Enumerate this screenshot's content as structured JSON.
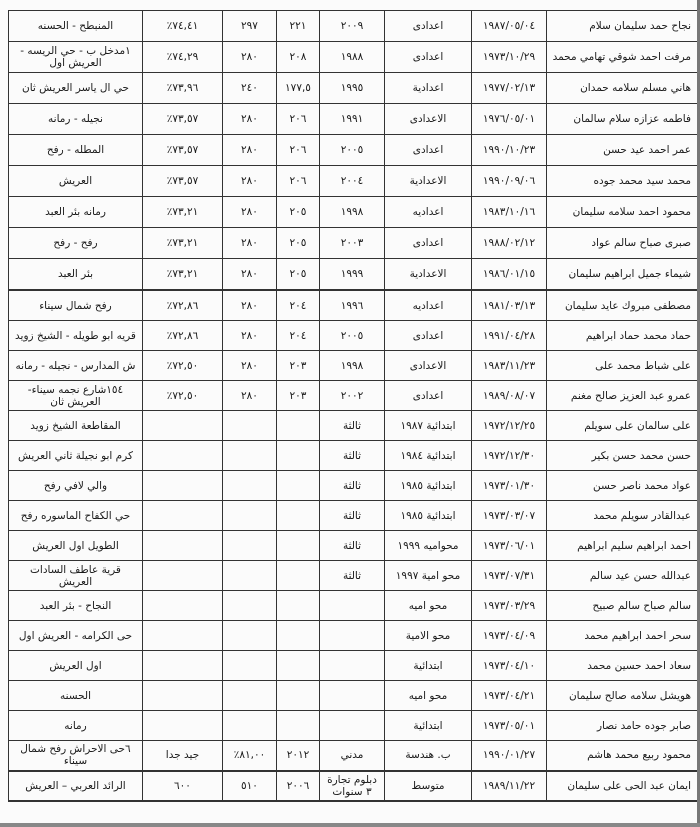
{
  "rows": [
    [
      "نجاح حمد سليمان سلام",
      "١٩٨٧/٠٥/٠٤",
      "اعدادى",
      "٢٠٠٩",
      "٢٢١",
      "٢٩٧",
      "٧٤,٤١٪",
      "المنبطح - الحسنه"
    ],
    [
      "مرفت احمد شوقي تهامي محمد",
      "١٩٧٣/١٠/٢٩",
      "اعدادى",
      "١٩٨٨",
      "٢٠٨",
      "٢٨٠",
      "٧٤,٢٩٪",
      "١مدخل ب - حي الريسه - العريش اول"
    ],
    [
      "هاني مسلم سلامه حمدان",
      "١٩٧٧/٠٢/١٣",
      "اعدادية",
      "١٩٩٥",
      "١٧٧,٥",
      "٢٤٠",
      "٧٣,٩٦٪",
      "حي ال ياسر العريش ثان"
    ],
    [
      "فاطمه عزازه سلام سالمان",
      "١٩٧٦/٠٥/٠١",
      "الاعدادى",
      "١٩٩١",
      "٢٠٦",
      "٢٨٠",
      "٧٣,٥٧٪",
      "نجيله - رمانه"
    ],
    [
      "عمر احمد عيد حسن",
      "١٩٩٠/١٠/٢٣",
      "اعدادى",
      "٢٠٠٥",
      "٢٠٦",
      "٢٨٠",
      "٧٣,٥٧٪",
      "المطله - رفح"
    ],
    [
      "محمد سيد محمد جوده",
      "١٩٩٠/٠٩/٠٦",
      "الاعدادية",
      "٢٠٠٤",
      "٢٠٦",
      "٢٨٠",
      "٧٣,٥٧٪",
      "العريش"
    ],
    [
      "محمود احمد سلامه سليمان",
      "١٩٨٣/١٠/١٦",
      "اعداديه",
      "١٩٩٨",
      "٢٠٥",
      "٢٨٠",
      "٧٣,٢١٪",
      "رمانه بئر العبد"
    ],
    [
      "صبرى صباح سالم عواد",
      "١٩٨٨/٠٢/١٢",
      "اعدادى",
      "٢٠٠٣",
      "٢٠٥",
      "٢٨٠",
      "٧٣,٢١٪",
      "رفح - رفح"
    ],
    [
      "شيماء جميل ابراهيم سليمان",
      "١٩٨٦/٠١/١٥",
      "الاعدادية",
      "١٩٩٩",
      "٢٠٥",
      "٢٨٠",
      "٧٣,٢١٪",
      "بئر العبد"
    ],
    [
      "مصطفى مبروك عايد سليمان",
      "١٩٨١/٠٣/١٣",
      "اعداديه",
      "١٩٩٦",
      "٢٠٤",
      "٢٨٠",
      "٧٢,٨٦٪",
      "رفح شمال سيناء"
    ],
    [
      "حماد محمد حماد ابراهيم",
      "١٩٩١/٠٤/٢٨",
      "اعدادى",
      "٢٠٠٥",
      "٢٠٤",
      "٢٨٠",
      "٧٢,٨٦٪",
      "قريه ابو طويله - الشيخ زويد"
    ],
    [
      "على شباط محمد على",
      "١٩٨٣/١١/٢٣",
      "الاعدادى",
      "١٩٩٨",
      "٢٠٣",
      "٢٨٠",
      "٧٢,٥٠٪",
      "ش المدارس - نجيله - رمانه"
    ],
    [
      "عمرو عبد العزيز صالح مغنم",
      "١٩٨٩/٠٨/٠٧",
      "اعدادى",
      "٢٠٠٢",
      "٢٠٣",
      "٢٨٠",
      "٧٢,٥٠٪",
      "١٥٤شارع نجمه سيناء- العريش ثان"
    ],
    [
      "على سالمان على سويلم",
      "١٩٧٢/١٢/٢٥",
      "ابتدائية ١٩٨٧",
      "ثالثة",
      "",
      "",
      "",
      "المقاطعة الشيخ زويد"
    ],
    [
      "حسن محمد حسن بكير",
      "١٩٧٢/١٢/٣٠",
      "ابتدائية ١٩٨٤",
      "ثالثة",
      "",
      "",
      "",
      "كرم ابو نجيلة  ثاني العريش"
    ],
    [
      "عواد محمد ناصر حسن",
      "١٩٧٣/٠١/٣٠",
      "ابتدائية ١٩٨٥",
      "ثالثة",
      "",
      "",
      "",
      "والي لافي رفح"
    ],
    [
      "عبدالقادر سويلم محمد",
      "١٩٧٣/٠٣/٠٧",
      "ابتدائية ١٩٨٥",
      "ثالثة",
      "",
      "",
      "",
      "حي الكفاح الماسوره رفح"
    ],
    [
      "احمد ابراهيم سليم ابراهيم",
      "١٩٧٣/٠٦/٠١",
      "محواميه ١٩٩٩",
      "ثالثة",
      "",
      "",
      "",
      "الطويل اول العريش"
    ],
    [
      "عبدالله حسن عيد سالم",
      "١٩٧٣/٠٧/٣١",
      "محو امية ١٩٩٧",
      "ثالثة",
      "",
      "",
      "",
      "قرية عاطف السادات العريش"
    ],
    [
      "سالم صباح سالم صبيح",
      "١٩٧٣/٠٣/٢٩",
      "محو اميه",
      "",
      "",
      "",
      "",
      "النجاح - بئر العبد"
    ],
    [
      "سحر احمد ابراهيم محمد",
      "١٩٧٣/٠٤/٠٩",
      "محو الامية",
      "",
      "",
      "",
      "",
      "حى الكرامه - العريش اول"
    ],
    [
      "سعاد احمد حسين محمد",
      "١٩٧٣/٠٤/١٠",
      "ابتدائية",
      "",
      "",
      "",
      "",
      "اول العريش"
    ],
    [
      "هويشل سلامه صالح سليمان",
      "١٩٧٣/٠٤/٢١",
      "محو اميه",
      "",
      "",
      "",
      "",
      "الحسنه"
    ],
    [
      "صابر جوده حامد نصار",
      "١٩٧٣/٠٥/٠١",
      "ابتدائية",
      "",
      "",
      "",
      "",
      "رمانه"
    ],
    [
      "محمود ربيع محمد هاشم",
      "١٩٩٠/٠١/٢٧",
      "ب. هندسة",
      "مدني",
      "٢٠١٢",
      "٨١,٠٠٪",
      "جيد جدا",
      "٦حى الاحراش رفح شمال سيناء"
    ],
    [
      "ايمان عبد الحى على سليمان",
      "١٩٨٩/١١/٢٢",
      "متوسط",
      "دبلوم تجارة ٣ سنوات",
      "٢٠٠٦",
      "٥١٠",
      "٦٠٠",
      "الرائد العربي – العريش"
    ]
  ]
}
